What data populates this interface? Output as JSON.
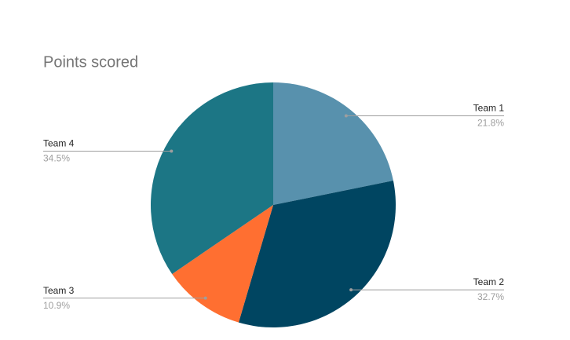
{
  "chart_data": {
    "type": "pie",
    "title": "Points scored",
    "categories": [
      "Team 1",
      "Team 2",
      "Team 3",
      "Team 4"
    ],
    "values": [
      21.8,
      32.7,
      10.9,
      34.5
    ],
    "value_labels": [
      "21.8%",
      "32.7%",
      "10.9%",
      "34.5%"
    ],
    "colors": [
      "#5891ad",
      "#004561",
      "#ff6f31",
      "#1c7685"
    ]
  }
}
